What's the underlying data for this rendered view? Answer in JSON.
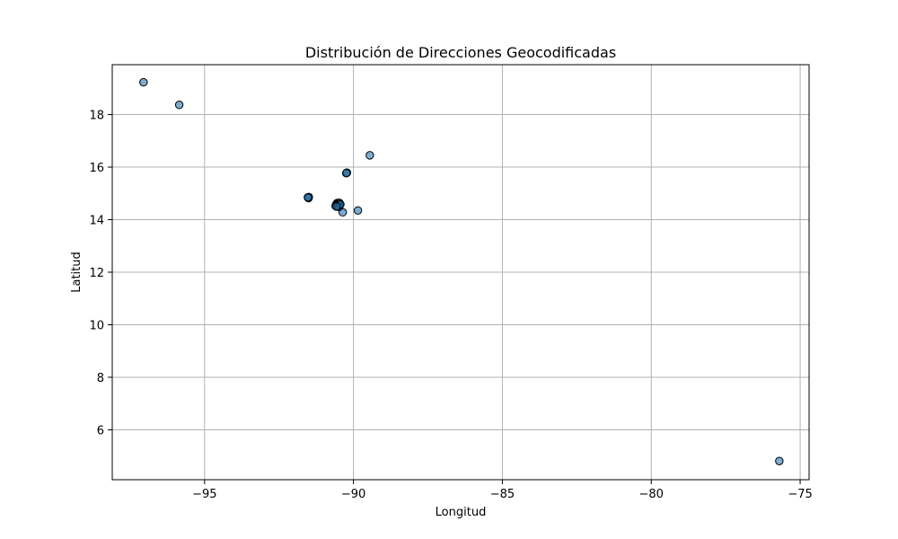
{
  "chart_data": {
    "type": "scatter",
    "title": "Distribución de Direcciones Geocodificadas",
    "xlabel": "Longitud",
    "ylabel": "Latitud",
    "xlim": [
      -98.1,
      -74.7
    ],
    "ylim": [
      4.1,
      19.9
    ],
    "x_ticks": [
      -95,
      -90,
      -85,
      -80,
      -75
    ],
    "x_tick_labels": [
      "−95",
      "−90",
      "−85",
      "−80",
      "−75"
    ],
    "y_ticks": [
      6,
      8,
      10,
      12,
      14,
      16,
      18
    ],
    "y_tick_labels": [
      "6",
      "8",
      "10",
      "12",
      "14",
      "16",
      "18"
    ],
    "grid": true,
    "marker_fill": "#1f77b4",
    "marker_fill_opacity": 0.6,
    "marker_edge": "#000000",
    "points": [
      {
        "x": -97.05,
        "y": 19.23
      },
      {
        "x": -95.85,
        "y": 18.37
      },
      {
        "x": -89.45,
        "y": 16.45
      },
      {
        "x": -90.23,
        "y": 15.78
      },
      {
        "x": -90.22,
        "y": 15.79
      },
      {
        "x": -90.24,
        "y": 15.77
      },
      {
        "x": -91.52,
        "y": 14.84
      },
      {
        "x": -91.5,
        "y": 14.86
      },
      {
        "x": -91.51,
        "y": 14.82
      },
      {
        "x": -91.53,
        "y": 14.85
      },
      {
        "x": -90.55,
        "y": 14.63
      },
      {
        "x": -90.52,
        "y": 14.64
      },
      {
        "x": -90.5,
        "y": 14.62
      },
      {
        "x": -90.48,
        "y": 14.6
      },
      {
        "x": -90.47,
        "y": 14.64
      },
      {
        "x": -90.58,
        "y": 14.58
      },
      {
        "x": -90.55,
        "y": 14.55
      },
      {
        "x": -90.51,
        "y": 14.57
      },
      {
        "x": -90.46,
        "y": 14.55
      },
      {
        "x": -90.6,
        "y": 14.52
      },
      {
        "x": -90.53,
        "y": 14.5
      },
      {
        "x": -90.48,
        "y": 14.48
      },
      {
        "x": -90.44,
        "y": 14.58
      },
      {
        "x": -90.57,
        "y": 14.5
      },
      {
        "x": -90.36,
        "y": 14.28
      },
      {
        "x": -89.85,
        "y": 14.35
      },
      {
        "x": -75.7,
        "y": 4.81
      }
    ]
  }
}
